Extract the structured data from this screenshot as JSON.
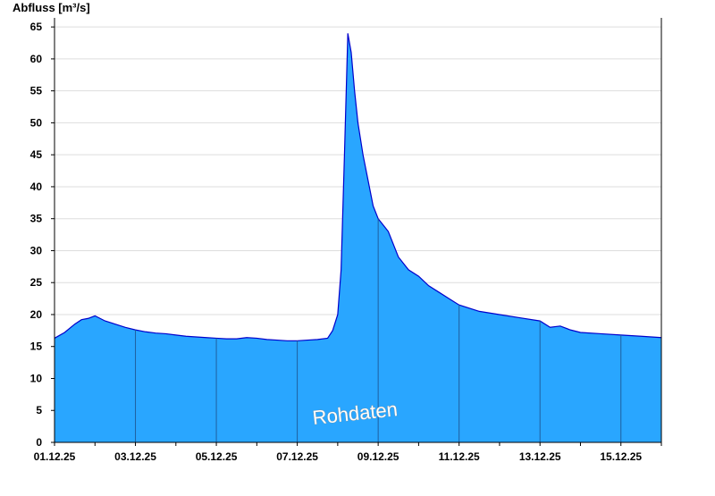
{
  "chart_data": {
    "type": "area",
    "ylabel": "Abfluss [m³/s]",
    "watermark": "Rohdaten",
    "ylim": [
      0,
      66
    ],
    "yticks": [
      0,
      5,
      10,
      15,
      20,
      25,
      30,
      35,
      40,
      45,
      50,
      55,
      60,
      65
    ],
    "xlim": [
      "01.12.25 00:00",
      "16.12.25 00:00"
    ],
    "xticks": [
      "01.12.25",
      "03.12.25",
      "05.12.25",
      "07.12.25",
      "09.12.25",
      "11.12.25",
      "13.12.25",
      "15.12.25"
    ],
    "grid": true,
    "colors": {
      "fill": "#29a6ff",
      "line": "#0000cc",
      "grid": "#dddddd",
      "dayline": "#1f5f9f"
    },
    "series": [
      {
        "x": [
          "01.12.25 00:00",
          "01.12.25 06:00",
          "01.12.25 12:00",
          "01.12.25 16:00",
          "01.12.25 20:00",
          "02.12.25 00:00",
          "02.12.25 06:00",
          "02.12.25 12:00",
          "02.12.25 18:00",
          "03.12.25 00:00",
          "03.12.25 06:00",
          "03.12.25 12:00",
          "03.12.25 18:00",
          "04.12.25 00:00",
          "04.12.25 06:00",
          "04.12.25 12:00",
          "04.12.25 18:00",
          "05.12.25 00:00",
          "05.12.25 06:00",
          "05.12.25 12:00",
          "05.12.25 18:00",
          "06.12.25 00:00",
          "06.12.25 06:00",
          "06.12.25 12:00",
          "06.12.25 18:00",
          "07.12.25 00:00",
          "07.12.25 06:00",
          "07.12.25 12:00",
          "07.12.25 18:00",
          "07.12.25 21:00",
          "08.12.25 00:00",
          "08.12.25 02:00",
          "08.12.25 04:00",
          "08.12.25 06:00",
          "08.12.25 08:00",
          "08.12.25 10:00",
          "08.12.25 12:00",
          "08.12.25 15:00",
          "08.12.25 18:00",
          "08.12.25 21:00",
          "09.12.25 00:00",
          "09.12.25 06:00",
          "09.12.25 12:00",
          "09.12.25 18:00",
          "10.12.25 00:00",
          "10.12.25 06:00",
          "10.12.25 12:00",
          "10.12.25 18:00",
          "11.12.25 00:00",
          "11.12.25 12:00",
          "12.12.25 00:00",
          "12.12.25 12:00",
          "13.12.25 00:00",
          "13.12.25 06:00",
          "13.12.25 12:00",
          "13.12.25 18:00",
          "14.12.25 00:00",
          "14.12.25 12:00",
          "15.12.25 00:00",
          "15.12.25 12:00",
          "16.12.25 00:00"
        ],
        "y": [
          16.3,
          17.2,
          18.5,
          19.2,
          19.4,
          19.8,
          19.0,
          18.5,
          18.0,
          17.6,
          17.3,
          17.1,
          17.0,
          16.8,
          16.6,
          16.5,
          16.4,
          16.3,
          16.2,
          16.2,
          16.4,
          16.3,
          16.1,
          16.0,
          15.9,
          15.9,
          16.0,
          16.1,
          16.3,
          17.5,
          20.0,
          27.0,
          45.0,
          64.0,
          61.0,
          55.0,
          50.0,
          45.0,
          41.0,
          37.0,
          35.0,
          33.0,
          29.0,
          27.0,
          26.0,
          24.5,
          23.5,
          22.5,
          21.5,
          20.5,
          20.0,
          19.5,
          19.0,
          18.0,
          18.2,
          17.6,
          17.2,
          17.0,
          16.8,
          16.6,
          16.4
        ]
      }
    ]
  }
}
